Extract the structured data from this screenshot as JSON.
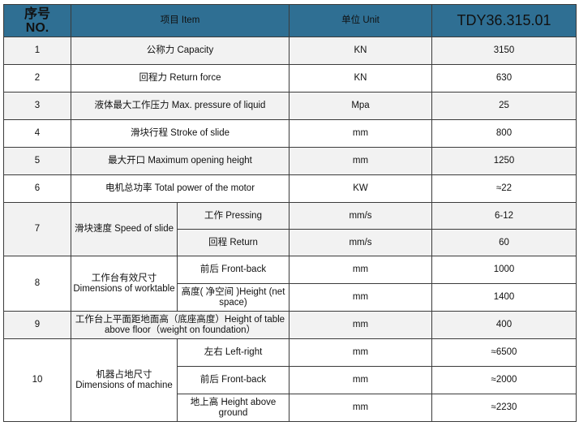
{
  "header": {
    "no_line1": "序号",
    "no_line2": "NO.",
    "item": "项目 Item",
    "unit": "单位 Unit",
    "model": "TDY36.315.01"
  },
  "rows": [
    {
      "no": "1",
      "item": "公称力 Capacity",
      "unit": "KN",
      "value": "3150"
    },
    {
      "no": "2",
      "item": "回程力 Return force",
      "unit": "KN",
      "value": "630"
    },
    {
      "no": "3",
      "item": "液体最大工作压力 Max. pressure of liquid",
      "unit": "Mpa",
      "value": "25"
    },
    {
      "no": "4",
      "item": "滑块行程 Stroke of slide",
      "unit": "mm",
      "value": "800"
    },
    {
      "no": "5",
      "item": "最大开口 Maximum opening height",
      "unit": "mm",
      "value": "1250"
    },
    {
      "no": "6",
      "item": "电机总功率 Total power of the motor",
      "unit": "KW",
      "value": "≈22"
    },
    {
      "no": "7",
      "item": "滑块速度 Speed of slide",
      "subs": [
        {
          "label": "工作 Pressing",
          "unit": "mm/s",
          "value": "6-12"
        },
        {
          "label": "回程 Return",
          "unit": "mm/s",
          "value": "60"
        }
      ]
    },
    {
      "no": "8",
      "item_line1": "工作台有效尺寸",
      "item_line2": "Dimensions of worktable",
      "subs": [
        {
          "label": "前后 Front-back",
          "unit": "mm",
          "value": "1000"
        },
        {
          "label": "高度( 净空间 )Height (net space)",
          "unit": "mm",
          "value": "1400"
        }
      ]
    },
    {
      "no": "9",
      "item": "工作台上平面距地面高（底座高度）Height of table above floor（weight on foundation）",
      "unit": "mm",
      "value": "400"
    },
    {
      "no": "10",
      "item_line1": "机器占地尺寸",
      "item_line2": "Dimensions of machine",
      "subs": [
        {
          "label": "左右 Left-right",
          "unit": "mm",
          "value": "≈6500"
        },
        {
          "label": "前后 Front-back",
          "unit": "mm",
          "value": "≈2000"
        },
        {
          "label": "地上高 Height above ground",
          "unit": "mm",
          "value": "≈2230"
        }
      ]
    }
  ]
}
